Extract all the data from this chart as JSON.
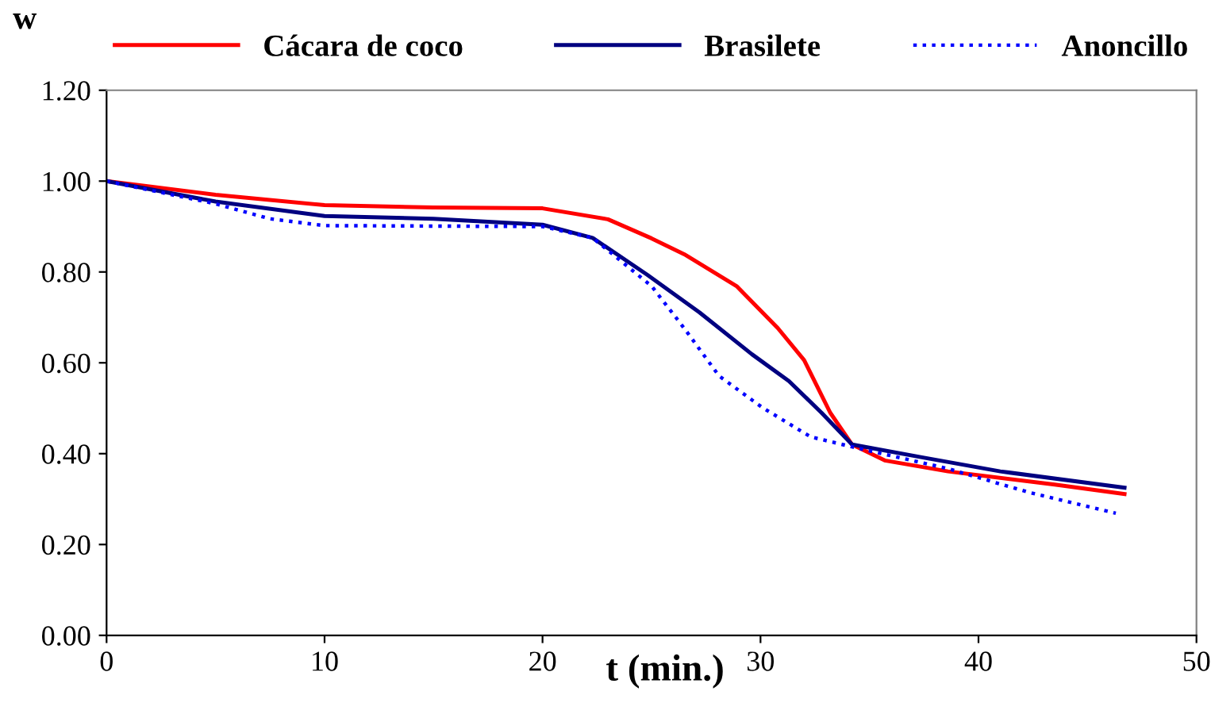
{
  "chart_data": {
    "type": "line",
    "xlabel": "t (min.)",
    "ylabel": "w",
    "xlim": [
      0,
      50
    ],
    "ylim": [
      0,
      1.2
    ],
    "xticks": [
      0,
      10,
      20,
      30,
      40,
      50
    ],
    "yticks": [
      {
        "value": 0,
        "label": "0.00"
      },
      {
        "value": 0.2,
        "label": "0.20"
      },
      {
        "value": 0.4,
        "label": "0.40"
      },
      {
        "value": 0.6,
        "label": "0.60"
      },
      {
        "value": 0.8,
        "label": "0.80"
      },
      {
        "value": 1.0,
        "label": "1.00"
      },
      {
        "value": 1.2,
        "label": "1.20"
      }
    ],
    "grid": false,
    "legend": "top",
    "marker": "none",
    "series": [
      {
        "name": "Cácara de coco",
        "color": "#ff0000",
        "line_style": "solid",
        "x": [
          0,
          5,
          10,
          15,
          20,
          23,
          25,
          26.5,
          28.9,
          30.8,
          32.0,
          33.2,
          34.2,
          35.7,
          38.6,
          43.5,
          46.7
        ],
        "values": [
          1.0,
          0.97,
          0.947,
          0.942,
          0.94,
          0.916,
          0.874,
          0.839,
          0.769,
          0.676,
          0.606,
          0.49,
          0.42,
          0.385,
          0.361,
          0.332,
          0.311
        ]
      },
      {
        "name": "Brasilete",
        "color": "#000080",
        "line_style": "solid",
        "x": [
          0,
          5,
          10,
          15,
          20,
          22.3,
          24.8,
          27.2,
          29.6,
          31.3,
          32.8,
          34.2,
          37.4,
          41.0,
          46.7
        ],
        "values": [
          1.0,
          0.955,
          0.923,
          0.917,
          0.904,
          0.875,
          0.794,
          0.711,
          0.619,
          0.56,
          0.49,
          0.42,
          0.392,
          0.361,
          0.325
        ]
      },
      {
        "name": "Anoncillo",
        "color": "#0000ff",
        "line_style": "dotted",
        "x": [
          0,
          5,
          7.5,
          10,
          20,
          22.3,
          25,
          26.5,
          28.1,
          30.1,
          32.3,
          34.2,
          38.6,
          42.3,
          46.3
        ],
        "values": [
          1.0,
          0.95,
          0.917,
          0.902,
          0.9,
          0.875,
          0.769,
          0.676,
          0.571,
          0.501,
          0.437,
          0.415,
          0.367,
          0.315,
          0.269
        ]
      }
    ]
  }
}
